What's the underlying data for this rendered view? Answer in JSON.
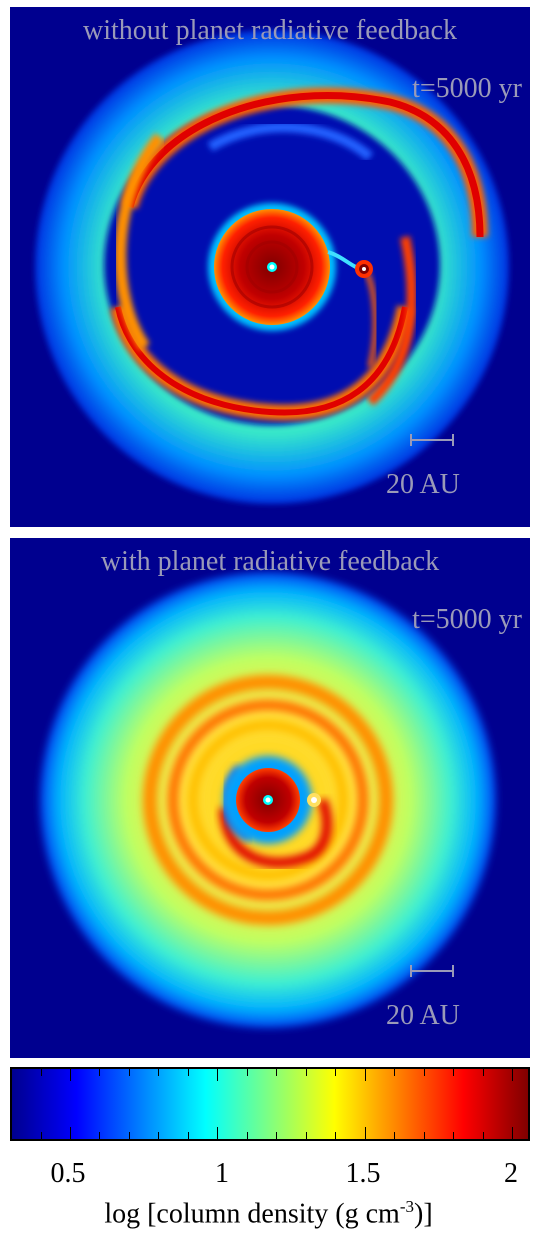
{
  "panels": [
    {
      "title": "without planet radiative feedback",
      "time": "t=5000 yr",
      "scale": "20 AU"
    },
    {
      "title": "with planet radiative feedback",
      "time": "t=5000 yr",
      "scale": "20 AU"
    }
  ],
  "colorbar": {
    "ticks": [
      "0.5",
      "1",
      "1.5",
      "2"
    ],
    "label_prefix": "log [column density (g cm",
    "label_exp": "-3",
    "label_suffix": ")]",
    "colormap": [
      "#00008f",
      "#0000ff",
      "#0080ff",
      "#00ffff",
      "#80ff80",
      "#ffff00",
      "#ff8000",
      "#ff0000",
      "#800000"
    ]
  }
}
